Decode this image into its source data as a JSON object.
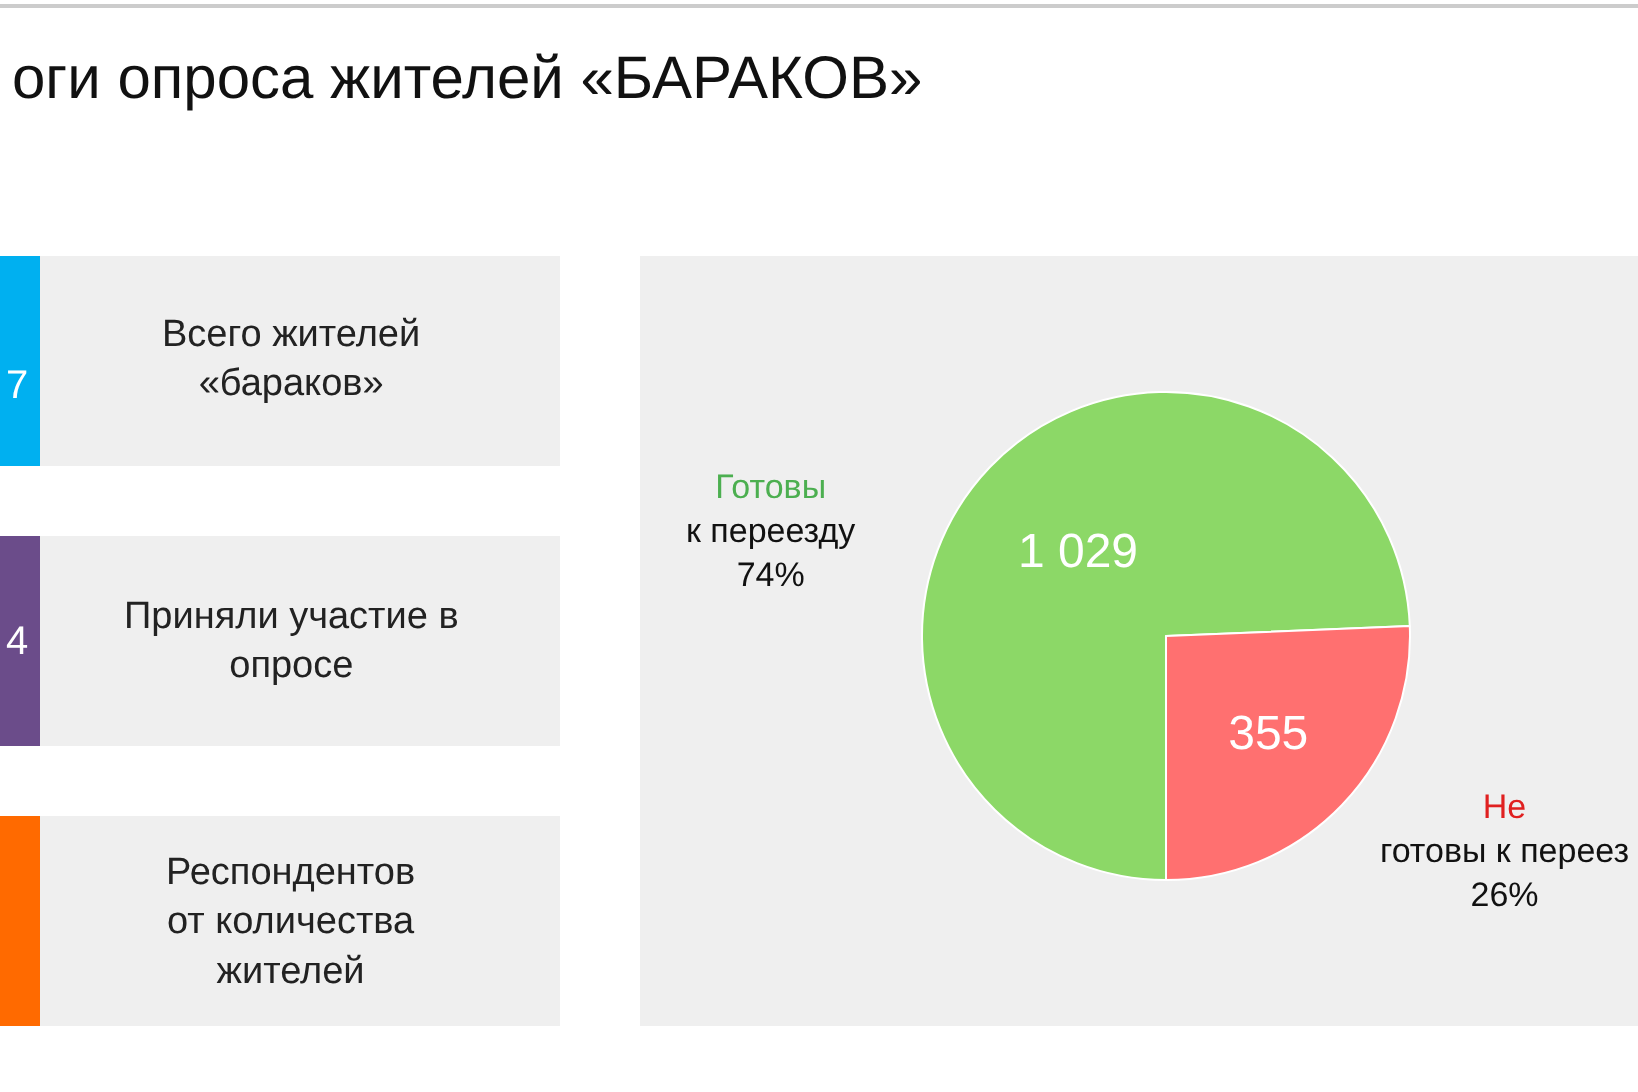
{
  "chart_data": [
    {
      "type": "other",
      "title": "оги опроса жителей «БАРАКОВ»",
      "categories": [
        "Всего жителей\n«бараков»",
        "Приняли участие в\nопросе",
        "Респондентов\nот количества\nжителей"
      ],
      "value_labels": [
        "7",
        "4",
        null
      ]
    },
    {
      "type": "pie",
      "categories": [
        "Готовы\nк переезду",
        "Не\nготовы к переез"
      ],
      "values": [
        1029,
        355
      ],
      "colors": [
        "#8cd867",
        "#ff7070"
      ],
      "value_labels": [
        "1 029",
        "355"
      ],
      "annotations": [
        "74%",
        "26%"
      ]
    }
  ]
}
